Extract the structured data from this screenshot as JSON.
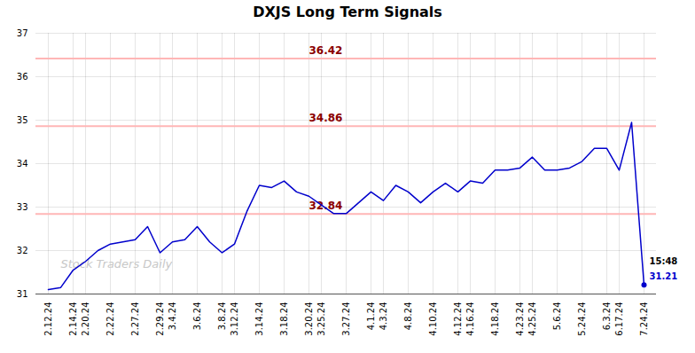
{
  "chart_data": {
    "type": "line",
    "title": "DXJS Long Term Signals",
    "categories": [
      "2.12.24",
      null,
      "2.14.24",
      "2.20.24",
      null,
      "2.22.24",
      null,
      "2.27.24",
      null,
      "2.29.24",
      "3.4.24",
      null,
      "3.6.24",
      null,
      "3.8.24",
      "3.12.24",
      null,
      "3.14.24",
      null,
      "3.18.24",
      null,
      "3.20.24",
      "3.25.24",
      null,
      "3.27.24",
      null,
      "4.1.24",
      "4.3.24",
      null,
      "4.8.24",
      null,
      "4.10.24",
      null,
      "4.12.24",
      "4.16.24",
      null,
      "4.18.24",
      null,
      "4.23.24",
      "4.25.24",
      null,
      "5.6.24",
      null,
      "5.24.24",
      null,
      "6.3.24",
      "6.17.24",
      null,
      "7.24.24"
    ],
    "values": [
      31.1,
      31.15,
      31.55,
      31.75,
      32.0,
      32.15,
      32.2,
      32.25,
      32.55,
      31.95,
      32.2,
      32.25,
      32.55,
      32.2,
      31.95,
      32.15,
      32.9,
      33.5,
      33.45,
      33.6,
      33.35,
      33.25,
      33.05,
      32.85,
      32.85,
      33.1,
      33.35,
      33.15,
      33.5,
      33.35,
      33.1,
      33.35,
      33.55,
      33.35,
      33.6,
      33.55,
      33.85,
      33.85,
      33.9,
      34.15,
      33.85,
      33.85,
      33.9,
      34.05,
      34.35,
      34.35,
      33.85,
      34.95,
      31.21
    ],
    "color": "#0000cc",
    "hlines": [
      {
        "value": 36.42,
        "label": "36.42"
      },
      {
        "value": 34.86,
        "label": "34.86"
      },
      {
        "value": 32.84,
        "label": "32.84"
      }
    ],
    "hline_color": "#ffb6b6",
    "hline_label_color": "#8b0000",
    "annotations": [
      {
        "text": "15:48",
        "color": "#000000"
      },
      {
        "text": "31.21",
        "color": "#0000cc"
      }
    ],
    "watermark": "Stock Traders Daily",
    "watermark_color": "#c8c8c8",
    "ylim": [
      31.0,
      37.0
    ],
    "yticks": [
      31,
      32,
      33,
      34,
      35,
      36,
      37
    ],
    "grid": true
  }
}
